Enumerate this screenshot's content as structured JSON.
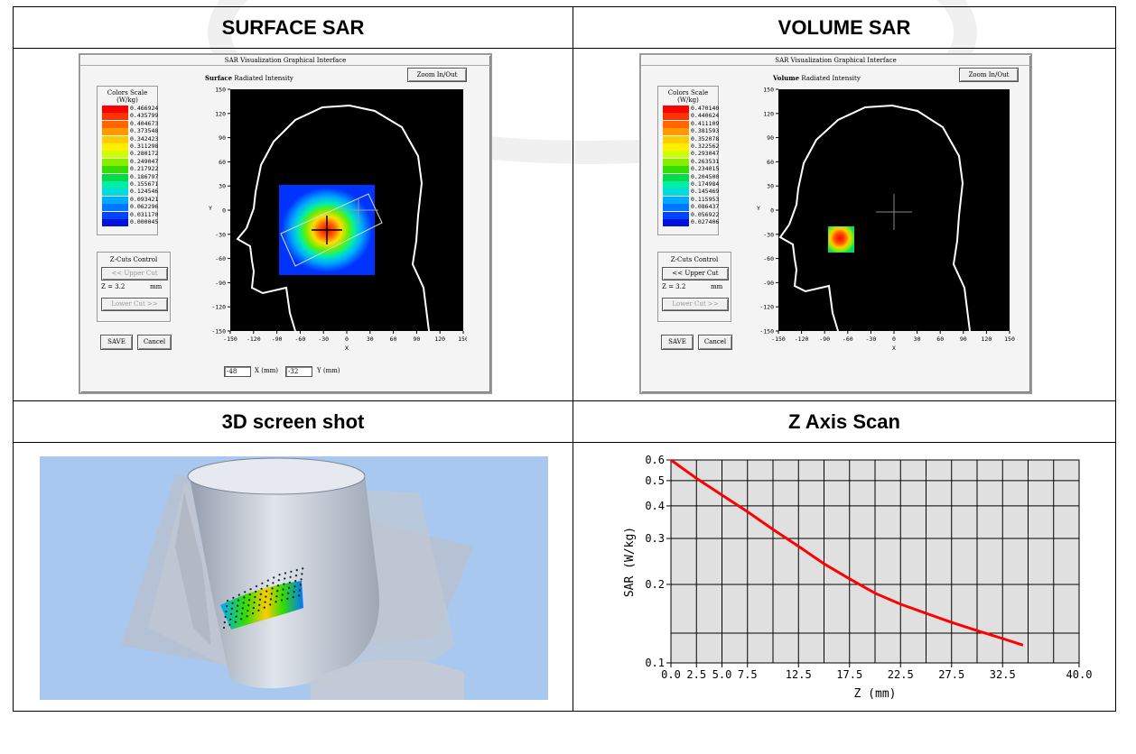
{
  "headers": {
    "surface": "SURFACE SAR",
    "volume": "VOLUME SAR",
    "shot3d": "3D screen shot",
    "zscan": "Z Axis Scan"
  },
  "surface_window": {
    "title": "SAR Visualization Graphical Interface",
    "zoom_button": "Zoom In/Out",
    "plot_label_bold": "Surface",
    "plot_label_rest": "Radiated Intensity",
    "scale_title": "Colors Scale",
    "scale_unit": "(W/kg)",
    "scale_values": [
      "0.466924",
      "0.435799",
      "0.404673",
      "0.373548",
      "0.342423",
      "0.311298",
      "0.280172",
      "0.249047",
      "0.217922",
      "0.186797",
      "0.155671",
      "0.124546",
      "0.093421",
      "0.062296",
      "0.031170",
      "0.000045"
    ],
    "zcuts_title": "Z-Cuts Control",
    "upper_cut": "<< Upper Cut",
    "z_label": "Z = 3.2",
    "z_unit": "mm",
    "lower_cut": "Lower Cut >>",
    "save": "SAVE",
    "cancel": "Cancel",
    "x_value": "-48",
    "x_label": "X (mm)",
    "y_value": "-32",
    "y_label": "Y (mm)",
    "xticks": [
      "-150",
      "-120",
      "-90",
      "-60",
      "-30",
      "0",
      "30",
      "60",
      "90",
      "120",
      "150"
    ],
    "yticks": [
      "150",
      "120",
      "90",
      "60",
      "30",
      "0",
      "-30",
      "-60",
      "-90",
      "-120",
      "-150"
    ],
    "x_axis": "X",
    "y_axis": "Y"
  },
  "volume_window": {
    "title": "SAR Visualization Graphical Interface",
    "zoom_button": "Zoom In/Out",
    "plot_label_bold": "Volume",
    "plot_label_rest": "Radiated Intensity",
    "scale_title": "Colors Scale",
    "scale_unit": "(W/kg)",
    "scale_values": [
      "0.470140",
      "0.440624",
      "0.411109",
      "0.381593",
      "0.352078",
      "0.322562",
      "0.293047",
      "0.263531",
      "0.234015",
      "0.204500",
      "0.174984",
      "0.145469",
      "0.115953",
      "0.086437",
      "0.056922",
      "0.027406"
    ],
    "zcuts_title": "Z-Cuts Control",
    "upper_cut": "<< Upper Cut",
    "z_label": "Z = 3.2",
    "z_unit": "mm",
    "lower_cut": "Lower Cut >>",
    "save": "SAVE",
    "cancel": "Cancel",
    "xticks": [
      "-150",
      "-120",
      "-90",
      "-60",
      "-30",
      "0",
      "30",
      "60",
      "90",
      "120",
      "150"
    ],
    "yticks": [
      "150",
      "120",
      "90",
      "60",
      "30",
      "0",
      "-30",
      "-60",
      "-90",
      "-120",
      "-150"
    ],
    "x_axis": "X",
    "y_axis": "Y"
  },
  "colors": {
    "scale": [
      "#ff0000",
      "#ff3300",
      "#ff6600",
      "#ff9900",
      "#ffcc00",
      "#ffee00",
      "#ccff00",
      "#88ee00",
      "#33dd00",
      "#00dd44",
      "#00eeaa",
      "#00dddd",
      "#00aaff",
      "#0077ff",
      "#0044ff",
      "#0011dd"
    ],
    "plot_bg": "#000000",
    "scan_line": "#ff0000",
    "scene_bg": "#a9c8f0"
  },
  "chart_data": {
    "type": "line",
    "title": "",
    "xlabel": "Z (mm)",
    "ylabel": "SAR (W/kg)",
    "xlim": [
      0,
      40
    ],
    "ylim": [
      0.1,
      0.6
    ],
    "yscale": "log",
    "grid": true,
    "xticks": [
      "0.0",
      "2.5",
      "5.0",
      "7.5",
      "12.5",
      "17.5",
      "22.5",
      "27.5",
      "32.5",
      "40.0"
    ],
    "yticks": [
      "0.1",
      "0.2",
      "0.3",
      "0.4",
      "0.5",
      "0.6"
    ],
    "series": [
      {
        "x": [
          0,
          2.5,
          5,
          7.5,
          10,
          12.5,
          15,
          17.5,
          20,
          22.5,
          25,
          27.5,
          30,
          32.5,
          34.5
        ],
        "y": [
          0.6,
          0.51,
          0.44,
          0.38,
          0.325,
          0.28,
          0.24,
          0.21,
          0.185,
          0.168,
          0.155,
          0.143,
          0.133,
          0.124,
          0.117
        ]
      }
    ]
  }
}
